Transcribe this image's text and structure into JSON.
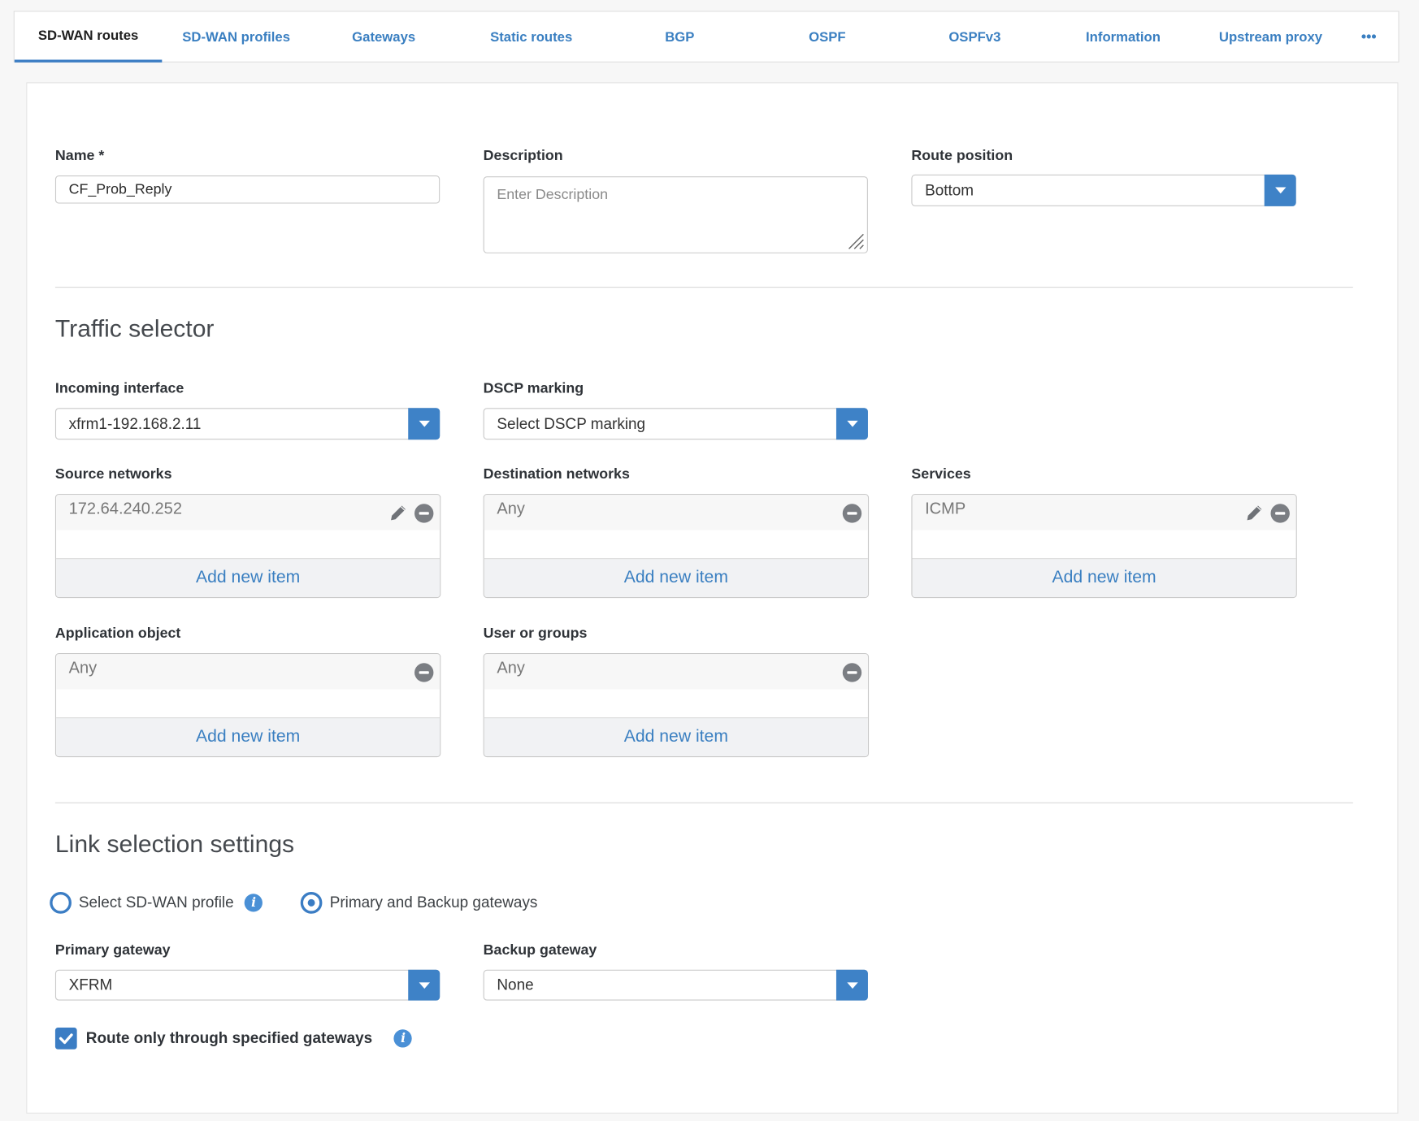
{
  "tabs": [
    {
      "label": "SD-WAN routes",
      "active": true
    },
    {
      "label": "SD-WAN profiles"
    },
    {
      "label": "Gateways"
    },
    {
      "label": "Static routes"
    },
    {
      "label": "BGP"
    },
    {
      "label": "OSPF"
    },
    {
      "label": "OSPFv3"
    },
    {
      "label": "Information"
    },
    {
      "label": "Upstream proxy"
    }
  ],
  "more_label": "•••",
  "form": {
    "name": {
      "label": "Name *",
      "value": "CF_Prob_Reply"
    },
    "description": {
      "label": "Description",
      "placeholder": "Enter Description"
    },
    "route_position": {
      "label": "Route position",
      "value": "Bottom"
    },
    "traffic_selector": {
      "title": "Traffic selector",
      "incoming_interface": {
        "label": "Incoming interface",
        "value": "xfrm1-192.168.2.11"
      },
      "dscp_marking": {
        "label": "DSCP marking",
        "value": "Select DSCP marking"
      },
      "source_networks": {
        "label": "Source networks",
        "items": [
          "172.64.240.252"
        ],
        "add_label": "Add new item"
      },
      "destination_networks": {
        "label": "Destination networks",
        "items": [
          "Any"
        ],
        "add_label": "Add new item"
      },
      "services": {
        "label": "Services",
        "items": [
          "ICMP"
        ],
        "add_label": "Add new item"
      },
      "application_object": {
        "label": "Application object",
        "items": [
          "Any"
        ],
        "add_label": "Add new item"
      },
      "user_or_groups": {
        "label": "User or groups",
        "items": [
          "Any"
        ],
        "add_label": "Add new item"
      }
    },
    "link_selection": {
      "title": "Link selection settings",
      "options": [
        {
          "label": "Select SD-WAN profile",
          "selected": false
        },
        {
          "label": "Primary and Backup gateways",
          "selected": true
        }
      ],
      "primary_gateway": {
        "label": "Primary gateway",
        "value": "XFRM"
      },
      "backup_gateway": {
        "label": "Backup gateway",
        "value": "None"
      },
      "route_only": {
        "label": "Route only through specified gateways",
        "checked": true
      }
    }
  },
  "colors": {
    "accent": "#3b7dc4",
    "link": "#3a7fc1",
    "background": "#f7f7f7"
  }
}
